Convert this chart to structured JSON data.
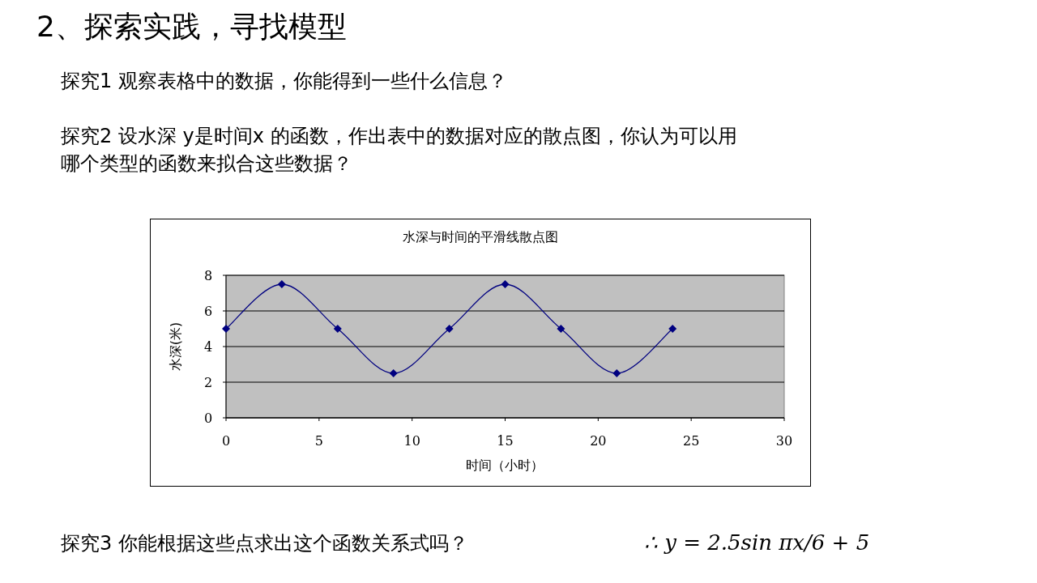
{
  "chart_data": {
    "type": "line",
    "title": "水深与时间的平滑线散点图",
    "xlabel": "时间（小时）",
    "ylabel": "水深(米)",
    "x": [
      0,
      3,
      6,
      9,
      12,
      15,
      18,
      21,
      24
    ],
    "series": [
      {
        "color": "#000080",
        "values": [
          5,
          7.5,
          5,
          2.5,
          5,
          7.5,
          5,
          2.5,
          5
        ]
      }
    ],
    "xlim": [
      0,
      30
    ],
    "xticks": [
      0,
      5,
      10,
      15,
      20,
      25,
      30
    ],
    "ylim": [
      0,
      8
    ],
    "yticks": [
      0,
      2,
      4,
      6,
      8
    ],
    "grid": "y",
    "marker": "diamond",
    "line_style": "solid",
    "annotations": [
      "2、探索实践，寻找模型",
      "探究1 观察表格中的数据，你能得到一些什么信息？",
      "探究2 设水深 y是时间x 的函数，作出表中的数据对应的散点图，你认为可以用哪个类型的函数来拟合这些数据？",
      "探究3 你能根据这些点求出这个函数关系式吗？",
      "∴ y = 2.5sin πx/6 + 5"
    ]
  }
}
